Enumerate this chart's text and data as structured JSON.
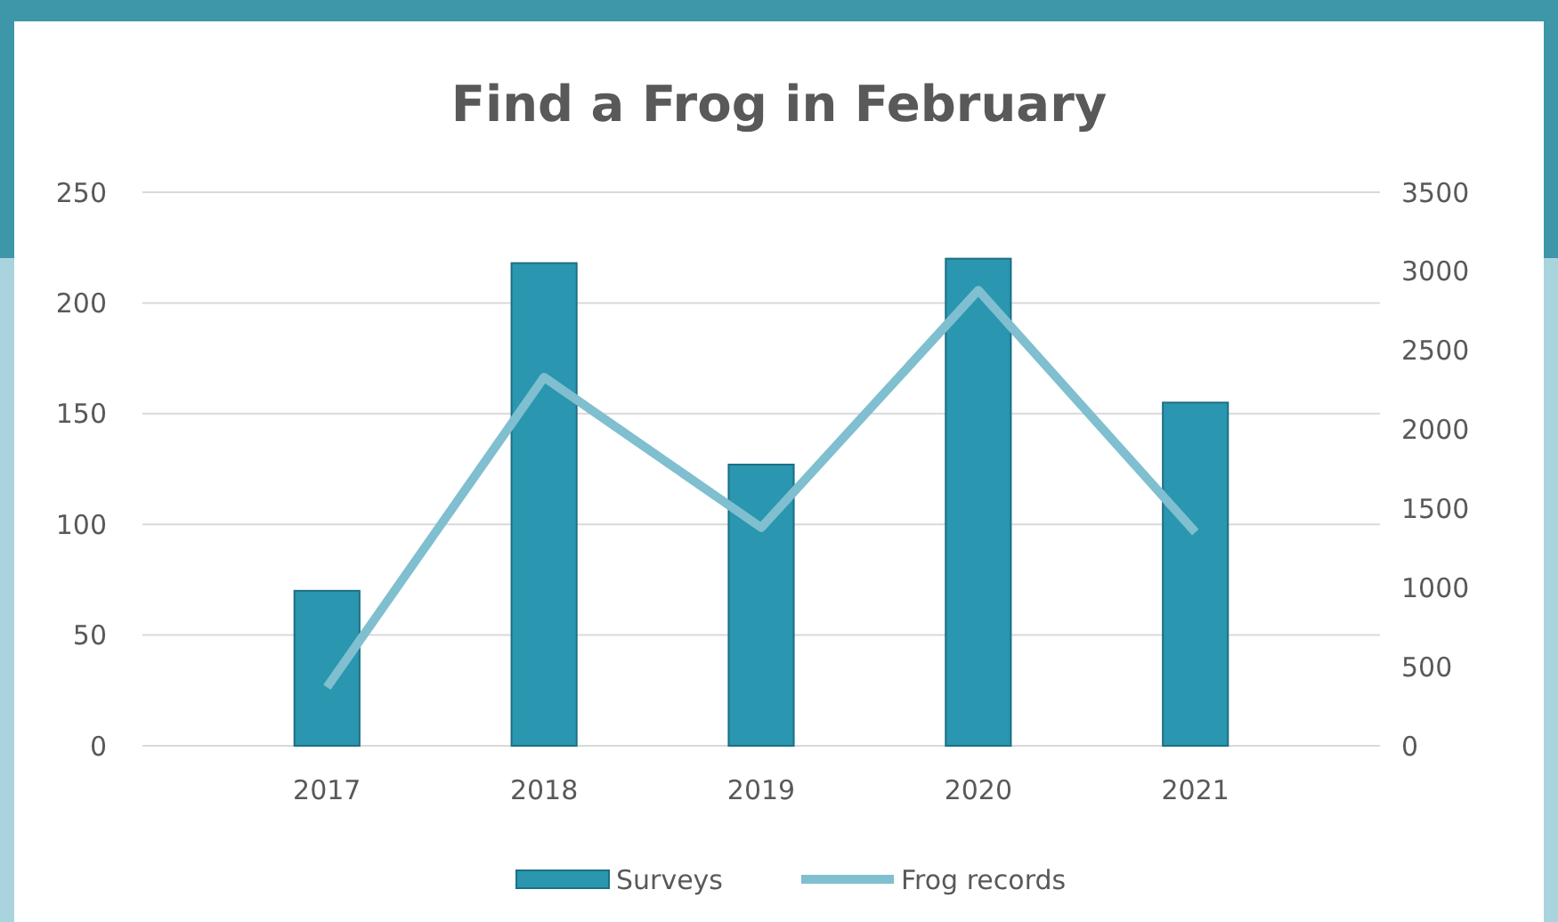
{
  "chart_data": {
    "type": "bar",
    "title": "Find a Frog in February",
    "categories": [
      "2017",
      "2018",
      "2019",
      "2020",
      "2021"
    ],
    "series": [
      {
        "name": "Surveys",
        "color": "#2a96b0",
        "values": [
          70,
          218,
          127,
          220,
          155
        ]
      },
      {
        "name": "Frog records",
        "type": "line",
        "axis": "y2",
        "color": "#7fbfcf",
        "values": [
          370,
          2330,
          1380,
          2880,
          1350
        ]
      }
    ],
    "ylim": [
      0,
      250
    ],
    "yticks": [
      0,
      50,
      100,
      150,
      200,
      250
    ],
    "y2lim": [
      0,
      3500
    ],
    "y2ticks": [
      0,
      500,
      1000,
      1500,
      2000,
      2500,
      3000,
      3500
    ],
    "grid": "y",
    "legend": "bottom",
    "marker": "none"
  }
}
